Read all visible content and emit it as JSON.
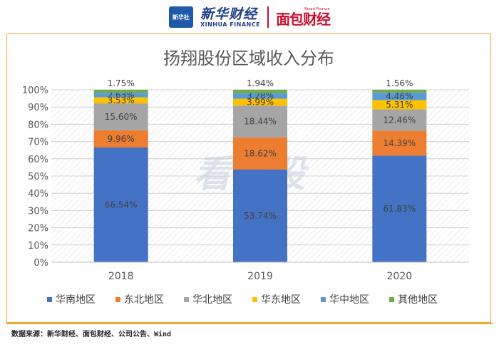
{
  "header": {
    "xinhua_badge": "新华社",
    "xinhua_cn": "新华财经",
    "xinhua_en": "XINHUA FINANCE",
    "mianbao_small": "Bread Finance",
    "mianbao_cn": "面包财经"
  },
  "watermark": "看新股",
  "source": "数据来源：新华财经、面包财经、公司公告、Wind",
  "colors": {
    "华南地区": "#4472c4",
    "东北地区": "#ed7d31",
    "华北地区": "#a5a5a5",
    "华东地区": "#ffc000",
    "华中地区": "#5b9bd5",
    "其他地区": "#70ad47",
    "frame": "#f0a830"
  },
  "chart_data": {
    "type": "bar",
    "stacked": true,
    "title": "扬翔股份区域收入分布",
    "xlabel": "",
    "ylabel": "",
    "categories": [
      "2018",
      "2019",
      "2020"
    ],
    "ylim": [
      0,
      100
    ],
    "yticks": [
      "0%",
      "10%",
      "20%",
      "30%",
      "40%",
      "50%",
      "60%",
      "70%",
      "80%",
      "90%",
      "100%"
    ],
    "legend_position": "bottom",
    "series": [
      {
        "name": "华南地区",
        "values": [
          66.54,
          53.74,
          61.83
        ],
        "labels": [
          "66.54%",
          "53.74%",
          "61.83%"
        ]
      },
      {
        "name": "东北地区",
        "values": [
          9.96,
          18.62,
          14.39
        ],
        "labels": [
          "9.96%",
          "18.62%",
          "14.39%"
        ]
      },
      {
        "name": "华北地区",
        "values": [
          15.6,
          18.44,
          12.46
        ],
        "labels": [
          "15.60%",
          "18.44%",
          "12.46%"
        ]
      },
      {
        "name": "华东地区",
        "values": [
          3.53,
          3.99,
          5.31
        ],
        "labels": [
          "3.53%",
          "3.99%",
          "5.31%"
        ]
      },
      {
        "name": "华中地区",
        "values": [
          2.63,
          3.28,
          4.46
        ],
        "labels": [
          "2.63%",
          "3.28%",
          "4.46%"
        ]
      },
      {
        "name": "其他地区",
        "values": [
          1.75,
          1.94,
          1.56
        ],
        "labels": [
          "1.75%",
          "1.94%",
          "1.56%"
        ]
      }
    ]
  }
}
